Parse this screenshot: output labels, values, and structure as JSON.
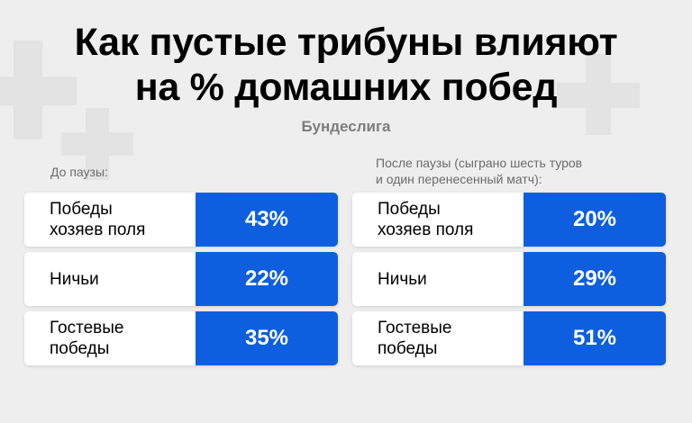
{
  "title_line1": "Как пустые трибуны влияют",
  "title_line2": "на % домашних побед",
  "subtitle": "Бундеслига",
  "colors": {
    "accent": "#0d5fe0",
    "background": "#eeeeee",
    "card": "#ffffff"
  },
  "chart_data": {
    "type": "table",
    "title": "Как пустые трибуны влияют на % домашних побед",
    "subtitle": "Бундеслига",
    "columns": [
      {
        "caption": "До паузы:",
        "rows": [
          {
            "label": "Победы\nхозяев поля",
            "value": 43,
            "display": "43%"
          },
          {
            "label": "Ничьи",
            "value": 22,
            "display": "22%"
          },
          {
            "label": "Гостевые\nпобеды",
            "value": 35,
            "display": "35%"
          }
        ]
      },
      {
        "caption": "После паузы (сыграно шесть туров\nи один перенесенный матч):",
        "rows": [
          {
            "label": "Победы\nхозяев поля",
            "value": 20,
            "display": "20%"
          },
          {
            "label": "Ничьи",
            "value": 29,
            "display": "29%"
          },
          {
            "label": "Гостевые\nпобеды",
            "value": 51,
            "display": "51%"
          }
        ]
      }
    ]
  }
}
